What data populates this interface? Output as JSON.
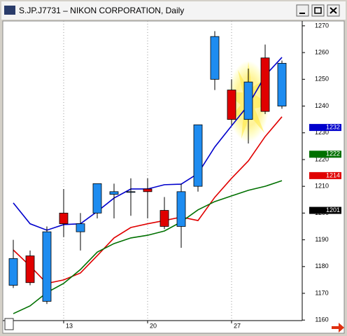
{
  "chart_data": {
    "type": "candlestick",
    "title": "S.JP.J7731 – NIKON CORPORATION, Daily",
    "categories": [
      null,
      null,
      null,
      "13",
      null,
      null,
      null,
      null,
      "20",
      null,
      null,
      null,
      null,
      "27",
      null,
      null,
      null
    ],
    "open": [
      1173,
      1184,
      1167,
      1200,
      1193,
      1200,
      1207,
      1208,
      1209,
      1201,
      1195,
      1210,
      1250,
      1246,
      1235,
      1258,
      1240
    ],
    "high": [
      1190,
      1186,
      1195,
      1209,
      1200,
      1211,
      1211,
      1213,
      1213,
      1206,
      1211,
      1233,
      1268,
      1250,
      1254,
      1263,
      1257
    ],
    "low": [
      1172,
      1173,
      1166,
      1191,
      1186,
      1198,
      1198,
      1199,
      1198,
      1194,
      1187,
      1208,
      1246,
      1233,
      1226,
      1237,
      1239
    ],
    "close": [
      1183,
      1174,
      1193,
      1196,
      1196,
      1211,
      1208,
      1208,
      1208,
      1195,
      1208,
      1233,
      1266,
      1235,
      1249,
      1238,
      1256
    ],
    "up_color": "#1e8cf0",
    "down_color": "#e00000",
    "lines": [
      {
        "color": "#0000cc",
        "values": [
          1203.8,
          1196,
          1193.6,
          1195.7,
          1196,
          1200.6,
          1205.6,
          1209,
          1209,
          1210.6,
          1210.8,
          1214.8,
          1224.7,
          1232.6,
          1240.4,
          1251.4,
          1258.2
        ]
      },
      {
        "color": "#e00000",
        "values": [
          1186.2,
          1180.2,
          1173.7,
          1175,
          1177.6,
          1184.1,
          1190.7,
          1194.6,
          1196,
          1197.2,
          1198.5,
          1197.2,
          1205.9,
          1213,
          1219.5,
          1228.6,
          1236
        ]
      },
      {
        "color": "#007000",
        "values": [
          1162.4,
          1165.3,
          1170.3,
          1173.7,
          1178.9,
          1185.4,
          1188.6,
          1190.7,
          1191.7,
          1193.3,
          1196.7,
          1201.2,
          1204.3,
          1206.4,
          1208.5,
          1210,
          1212.1
        ]
      }
    ],
    "price_tags": [
      {
        "value": 1232,
        "color": "#0000cc"
      },
      {
        "value": 1222,
        "color": "#007000"
      },
      {
        "value": 1214,
        "color": "#e00000"
      },
      {
        "value": 1201,
        "color": "#000000"
      }
    ],
    "ylim": [
      1159.8,
      1271.8
    ],
    "yticks": [
      1160,
      1170,
      1180,
      1190,
      1200,
      1210,
      1220,
      1230,
      1240,
      1250,
      1260,
      1270
    ]
  }
}
